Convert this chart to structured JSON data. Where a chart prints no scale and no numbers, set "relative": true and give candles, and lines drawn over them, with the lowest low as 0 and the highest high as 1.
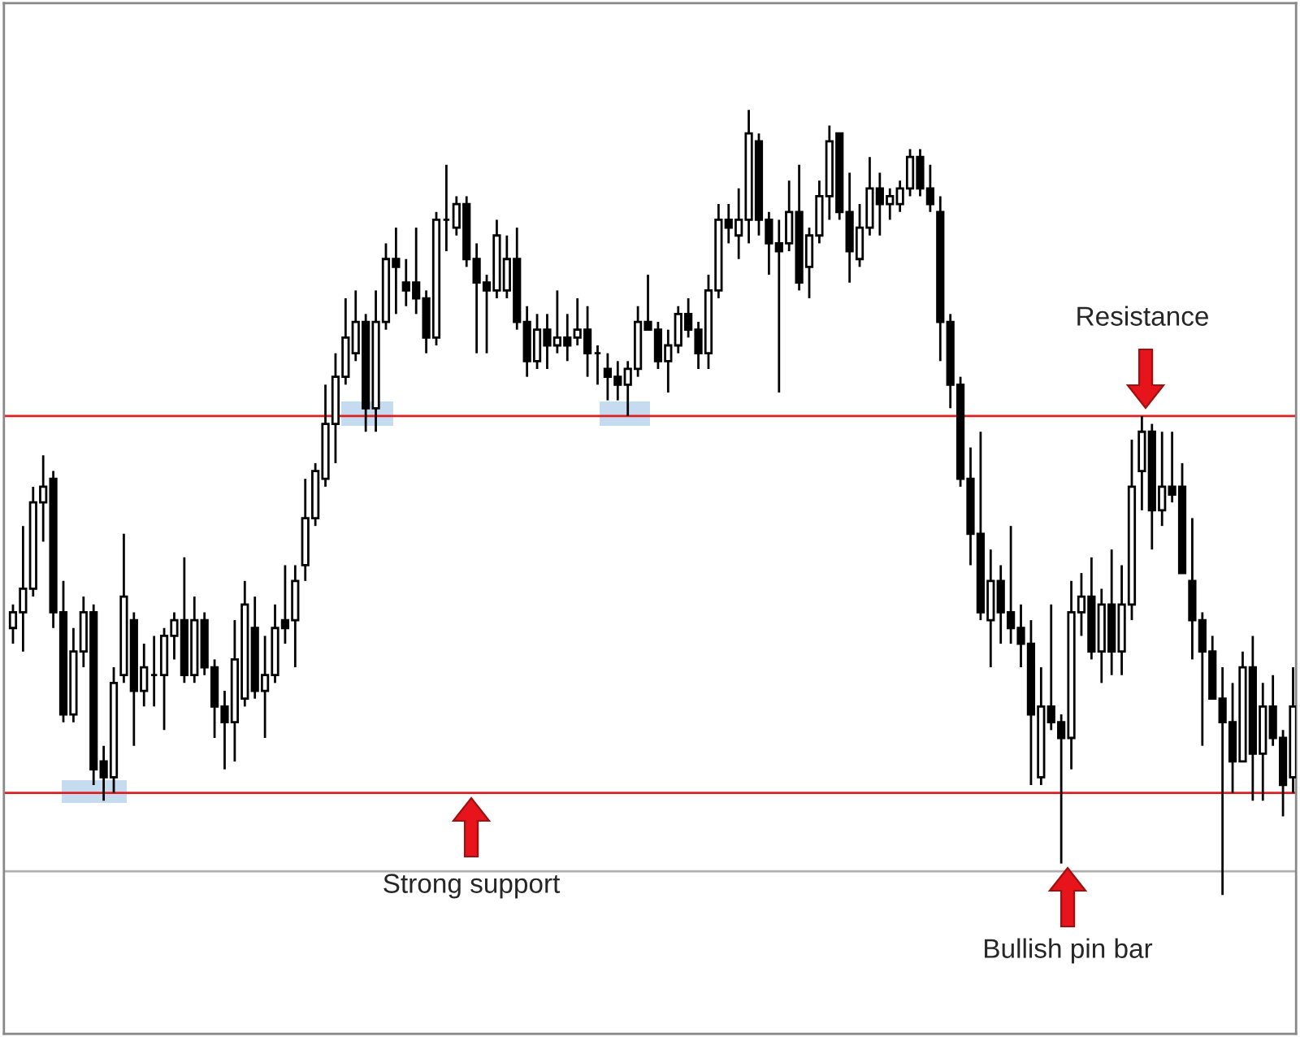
{
  "chart_data": {
    "type": "candlestick",
    "relative": true,
    "categories": [
      null,
      null,
      null,
      null,
      null,
      null,
      null,
      null,
      null,
      null,
      null,
      null,
      null,
      null,
      null,
      null,
      null,
      null,
      null,
      null,
      null,
      null,
      null,
      null,
      null,
      null,
      null,
      null,
      null,
      null,
      null,
      null,
      null,
      null,
      null,
      null,
      null,
      null,
      null,
      null,
      null,
      null,
      null,
      null,
      null,
      null,
      null,
      null,
      null,
      null,
      null,
      null,
      null,
      null,
      null,
      null,
      null,
      null,
      null,
      null,
      null,
      null,
      null,
      null,
      null,
      null,
      null,
      null,
      null,
      null,
      null,
      null,
      null,
      null,
      null,
      null,
      null,
      null,
      null,
      null,
      null,
      null,
      null,
      null,
      null,
      null,
      null,
      null,
      null,
      null,
      null,
      null,
      null,
      null,
      null,
      null,
      null,
      null,
      null,
      null,
      null,
      null,
      null,
      null,
      null,
      null,
      null,
      null,
      null,
      null,
      null,
      null,
      null,
      null,
      null,
      null,
      null,
      null,
      null,
      null,
      null,
      null,
      null,
      null,
      null,
      null,
      null,
      null
    ],
    "ohlc": [
      [
        0.34,
        0.37,
        0.32,
        0.36
      ],
      [
        0.36,
        0.47,
        0.31,
        0.39
      ],
      [
        0.39,
        0.52,
        0.38,
        0.5
      ],
      [
        0.5,
        0.56,
        0.45,
        0.52
      ],
      [
        0.53,
        0.54,
        0.34,
        0.36
      ],
      [
        0.36,
        0.4,
        0.22,
        0.23
      ],
      [
        0.23,
        0.34,
        0.22,
        0.31
      ],
      [
        0.31,
        0.38,
        0.29,
        0.36
      ],
      [
        0.36,
        0.37,
        0.14,
        0.16
      ],
      [
        0.17,
        0.19,
        0.12,
        0.15
      ],
      [
        0.15,
        0.29,
        0.13,
        0.27
      ],
      [
        0.28,
        0.46,
        0.27,
        0.38
      ],
      [
        0.35,
        0.36,
        0.19,
        0.26
      ],
      [
        0.26,
        0.32,
        0.24,
        0.29
      ],
      [
        0.28,
        0.33,
        0.24,
        0.28
      ],
      [
        0.28,
        0.34,
        0.21,
        0.33
      ],
      [
        0.33,
        0.36,
        0.3,
        0.35
      ],
      [
        0.35,
        0.43,
        0.27,
        0.28
      ],
      [
        0.28,
        0.38,
        0.27,
        0.35
      ],
      [
        0.35,
        0.36,
        0.28,
        0.29
      ],
      [
        0.29,
        0.3,
        0.2,
        0.24
      ],
      [
        0.24,
        0.26,
        0.16,
        0.22
      ],
      [
        0.22,
        0.35,
        0.17,
        0.3
      ],
      [
        0.25,
        0.4,
        0.24,
        0.37
      ],
      [
        0.34,
        0.38,
        0.25,
        0.26
      ],
      [
        0.26,
        0.33,
        0.2,
        0.28
      ],
      [
        0.28,
        0.37,
        0.27,
        0.34
      ],
      [
        0.35,
        0.42,
        0.32,
        0.34
      ],
      [
        0.35,
        0.42,
        0.29,
        0.4
      ],
      [
        0.42,
        0.53,
        0.4,
        0.48
      ],
      [
        0.48,
        0.55,
        0.47,
        0.54
      ],
      [
        0.53,
        0.65,
        0.52,
        0.6
      ],
      [
        0.6,
        0.69,
        0.55,
        0.66
      ],
      [
        0.66,
        0.76,
        0.65,
        0.71
      ],
      [
        0.69,
        0.77,
        0.68,
        0.73
      ],
      [
        0.73,
        0.74,
        0.59,
        0.62
      ],
      [
        0.62,
        0.77,
        0.59,
        0.73
      ],
      [
        0.73,
        0.83,
        0.72,
        0.81
      ],
      [
        0.81,
        0.85,
        0.74,
        0.8
      ],
      [
        0.78,
        0.81,
        0.75,
        0.77
      ],
      [
        0.78,
        0.85,
        0.74,
        0.76
      ],
      [
        0.76,
        0.77,
        0.69,
        0.71
      ],
      [
        0.71,
        0.87,
        0.7,
        0.86
      ],
      [
        0.86,
        0.93,
        0.82,
        0.86
      ],
      [
        0.85,
        0.89,
        0.84,
        0.88
      ],
      [
        0.88,
        0.89,
        0.8,
        0.81
      ],
      [
        0.81,
        0.83,
        0.69,
        0.78
      ],
      [
        0.78,
        0.79,
        0.69,
        0.77
      ],
      [
        0.77,
        0.86,
        0.76,
        0.84
      ],
      [
        0.77,
        0.84,
        0.76,
        0.81
      ],
      [
        0.81,
        0.85,
        0.72,
        0.73
      ],
      [
        0.73,
        0.75,
        0.66,
        0.68
      ],
      [
        0.68,
        0.74,
        0.67,
        0.72
      ],
      [
        0.72,
        0.74,
        0.67,
        0.7
      ],
      [
        0.7,
        0.77,
        0.69,
        0.71
      ],
      [
        0.71,
        0.74,
        0.68,
        0.7
      ],
      [
        0.71,
        0.76,
        0.7,
        0.72
      ],
      [
        0.72,
        0.75,
        0.66,
        0.69
      ],
      [
        0.69,
        0.7,
        0.65,
        0.69
      ],
      [
        0.67,
        0.69,
        0.63,
        0.66
      ],
      [
        0.66,
        0.68,
        0.63,
        0.65
      ],
      [
        0.65,
        0.68,
        0.61,
        0.67
      ],
      [
        0.67,
        0.75,
        0.66,
        0.73
      ],
      [
        0.73,
        0.79,
        0.72,
        0.72
      ],
      [
        0.72,
        0.73,
        0.67,
        0.68
      ],
      [
        0.68,
        0.72,
        0.64,
        0.7
      ],
      [
        0.7,
        0.75,
        0.69,
        0.74
      ],
      [
        0.74,
        0.76,
        0.71,
        0.72
      ],
      [
        0.72,
        0.73,
        0.67,
        0.69
      ],
      [
        0.69,
        0.79,
        0.67,
        0.77
      ],
      [
        0.77,
        0.88,
        0.76,
        0.86
      ],
      [
        0.86,
        0.88,
        0.83,
        0.85
      ],
      [
        0.84,
        0.9,
        0.81,
        0.86
      ],
      [
        0.86,
        1.0,
        0.83,
        0.97
      ],
      [
        0.96,
        0.97,
        0.84,
        0.86
      ],
      [
        0.86,
        0.87,
        0.79,
        0.83
      ],
      [
        0.83,
        0.86,
        0.64,
        0.82
      ],
      [
        0.83,
        0.91,
        0.82,
        0.87
      ],
      [
        0.87,
        0.93,
        0.77,
        0.78
      ],
      [
        0.8,
        0.85,
        0.76,
        0.84
      ],
      [
        0.84,
        0.91,
        0.83,
        0.89
      ],
      [
        0.89,
        0.98,
        0.86,
        0.96
      ],
      [
        0.97,
        0.97,
        0.86,
        0.87
      ],
      [
        0.87,
        0.92,
        0.78,
        0.82
      ],
      [
        0.81,
        0.88,
        0.8,
        0.85
      ],
      [
        0.85,
        0.94,
        0.84,
        0.9
      ],
      [
        0.9,
        0.92,
        0.84,
        0.88
      ],
      [
        0.88,
        0.9,
        0.86,
        0.89
      ],
      [
        0.88,
        0.91,
        0.87,
        0.9
      ],
      [
        0.9,
        0.95,
        0.89,
        0.94
      ],
      [
        0.94,
        0.95,
        0.89,
        0.9
      ],
      [
        0.9,
        0.93,
        0.87,
        0.88
      ],
      [
        0.87,
        0.89,
        0.68,
        0.73
      ],
      [
        0.73,
        0.74,
        0.62,
        0.65
      ],
      [
        0.65,
        0.66,
        0.52,
        0.53
      ],
      [
        0.53,
        0.57,
        0.42,
        0.46
      ],
      [
        0.46,
        0.59,
        0.35,
        0.36
      ],
      [
        0.35,
        0.44,
        0.29,
        0.4
      ],
      [
        0.4,
        0.42,
        0.32,
        0.36
      ],
      [
        0.36,
        0.47,
        0.32,
        0.34
      ],
      [
        0.34,
        0.37,
        0.29,
        0.32
      ],
      [
        0.32,
        0.35,
        0.14,
        0.23
      ],
      [
        0.15,
        0.29,
        0.14,
        0.24
      ],
      [
        0.24,
        0.37,
        0.21,
        0.22
      ],
      [
        0.22,
        0.23,
        0.04,
        0.2
      ],
      [
        0.2,
        0.4,
        0.16,
        0.36
      ],
      [
        0.36,
        0.41,
        0.33,
        0.38
      ],
      [
        0.38,
        0.43,
        0.3,
        0.31
      ],
      [
        0.31,
        0.39,
        0.27,
        0.37
      ],
      [
        0.37,
        0.44,
        0.28,
        0.31
      ],
      [
        0.31,
        0.42,
        0.28,
        0.37
      ],
      [
        0.37,
        0.58,
        0.35,
        0.52
      ],
      [
        0.54,
        0.61,
        0.49,
        0.59
      ],
      [
        0.59,
        0.6,
        0.44,
        0.49
      ],
      [
        0.49,
        0.59,
        0.47,
        0.52
      ],
      [
        0.52,
        0.59,
        0.5,
        0.51
      ],
      [
        0.52,
        0.55,
        0.41,
        0.41
      ],
      [
        0.4,
        0.48,
        0.3,
        0.35
      ],
      [
        0.35,
        0.36,
        0.19,
        0.31
      ],
      [
        0.31,
        0.33,
        0.25,
        0.25
      ],
      [
        0.25,
        0.29,
        0.0,
        0.22
      ],
      [
        0.22,
        0.27,
        0.13,
        0.17
      ],
      [
        0.17,
        0.31,
        0.17,
        0.29
      ],
      [
        0.29,
        0.33,
        0.12,
        0.18
      ],
      [
        0.18,
        0.27,
        0.12,
        0.24
      ],
      [
        0.24,
        0.28,
        0.19,
        0.2
      ],
      [
        0.2,
        0.21,
        0.1,
        0.14
      ],
      [
        0.15,
        0.29,
        0.13,
        0.24
      ]
    ],
    "ref_lines": [
      {
        "axis": "y",
        "value": 0.61,
        "color": "#e02020"
      },
      {
        "axis": "y",
        "value": 0.13,
        "color": "#e02020"
      },
      {
        "axis": "y",
        "value": 0.03,
        "color": "#b0b0b0"
      }
    ],
    "annotations": [
      "Resistance",
      "Strong support",
      "Bullish pin bar"
    ]
  }
}
